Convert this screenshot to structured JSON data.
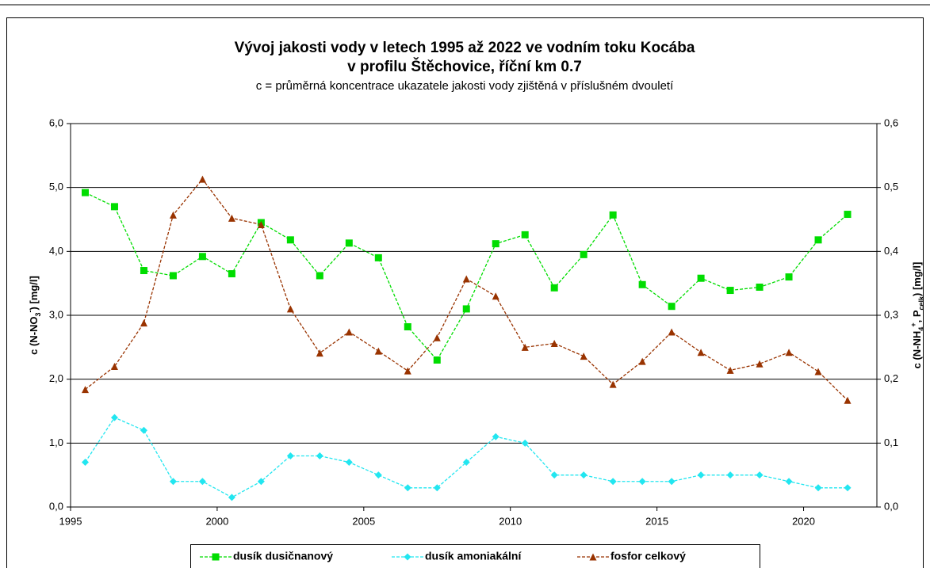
{
  "chart_data": {
    "type": "line",
    "title": "Vývoj jakosti vody v letech 1995 až 2022 ve vodním toku Kocába",
    "title_line2": "v profilu Štěchovice, říční km 0.7",
    "subtitle": "c = průměrná koncentrace ukazatele jakosti vody zjištěná v příslušném dvouletí",
    "y_label": [
      {
        "text": "c (N-NO"
      },
      {
        "text": "3",
        "shift": "sub"
      },
      {
        "text": "-",
        "shift": "super"
      },
      {
        "text": ") [mg/l]"
      }
    ],
    "y2_label": [
      {
        "text": "c (N-NH"
      },
      {
        "text": "4",
        "shift": "sub"
      },
      {
        "text": "+",
        "shift": "super"
      },
      {
        "text": ", P"
      },
      {
        "text": "celk",
        "shift": "sub"
      },
      {
        "text": ") [mg/l]"
      }
    ],
    "x": [
      1995.5,
      1996.5,
      1997.5,
      1998.5,
      1999.5,
      2000.5,
      2001.5,
      2002.5,
      2003.5,
      2004.5,
      2005.5,
      2006.5,
      2007.5,
      2008.5,
      2009.5,
      2010.5,
      2011.5,
      2012.5,
      2013.5,
      2014.5,
      2015.5,
      2016.5,
      2017.5,
      2018.5,
      2019.5,
      2020.5,
      2021.5
    ],
    "xlim": [
      1995,
      2022.5
    ],
    "xticks": [
      1995,
      2000,
      2005,
      2010,
      2015,
      2020
    ],
    "ylim": [
      0,
      6
    ],
    "yticks": [
      {
        "value": 0,
        "label": "0,0"
      },
      {
        "value": 1,
        "label": "1,0"
      },
      {
        "value": 2,
        "label": "2,0"
      },
      {
        "value": 3,
        "label": "3,0"
      },
      {
        "value": 4,
        "label": "4,0"
      },
      {
        "value": 5,
        "label": "5,0"
      },
      {
        "value": 6,
        "label": "6,0"
      }
    ],
    "y2lim": [
      0,
      0.6
    ],
    "y2ticks": [
      {
        "value": 0,
        "label": "0,0"
      },
      {
        "value": 0.1,
        "label": "0,1"
      },
      {
        "value": 0.2,
        "label": "0,2"
      },
      {
        "value": 0.3,
        "label": "0,3"
      },
      {
        "value": 0.4,
        "label": "0,4"
      },
      {
        "value": 0.5,
        "label": "0,5"
      },
      {
        "value": 0.6,
        "label": "0,6"
      }
    ],
    "grid": true,
    "legend": "bottom",
    "series": [
      {
        "name": "dusík dusičnanový",
        "color": "#00dd00",
        "marker": "square",
        "values": [
          4.92,
          4.7,
          3.7,
          3.62,
          3.92,
          3.65,
          4.45,
          4.18,
          3.62,
          4.13,
          3.9,
          2.82,
          2.3,
          3.1,
          4.12,
          4.26,
          3.43,
          3.95,
          4.57,
          3.48,
          3.14,
          3.58,
          3.39,
          3.44,
          3.6,
          4.18,
          4.58
        ]
      },
      {
        "name": "dusík amoniakální",
        "color": "#22e6f0",
        "marker": "diamond",
        "axis": "y2",
        "values": [
          0.07,
          0.14,
          0.12,
          0.04,
          0.04,
          0.015,
          0.04,
          0.08,
          0.08,
          0.07,
          0.05,
          0.03,
          0.03,
          0.07,
          0.11,
          0.1,
          0.05,
          0.05,
          0.04,
          0.04,
          0.04,
          0.05,
          0.05,
          0.05,
          0.04,
          0.03,
          0.03
        ]
      },
      {
        "name": "fosfor celkový",
        "color": "#993300",
        "marker": "triangle",
        "axis": "y2",
        "values": [
          0.184,
          0.22,
          0.288,
          0.457,
          0.513,
          0.452,
          0.442,
          0.31,
          0.241,
          0.274,
          0.244,
          0.213,
          0.265,
          0.357,
          0.33,
          0.25,
          0.256,
          0.236,
          0.192,
          0.228,
          0.274,
          0.242,
          0.214,
          0.224,
          0.242,
          0.212,
          0.167
        ]
      }
    ]
  }
}
